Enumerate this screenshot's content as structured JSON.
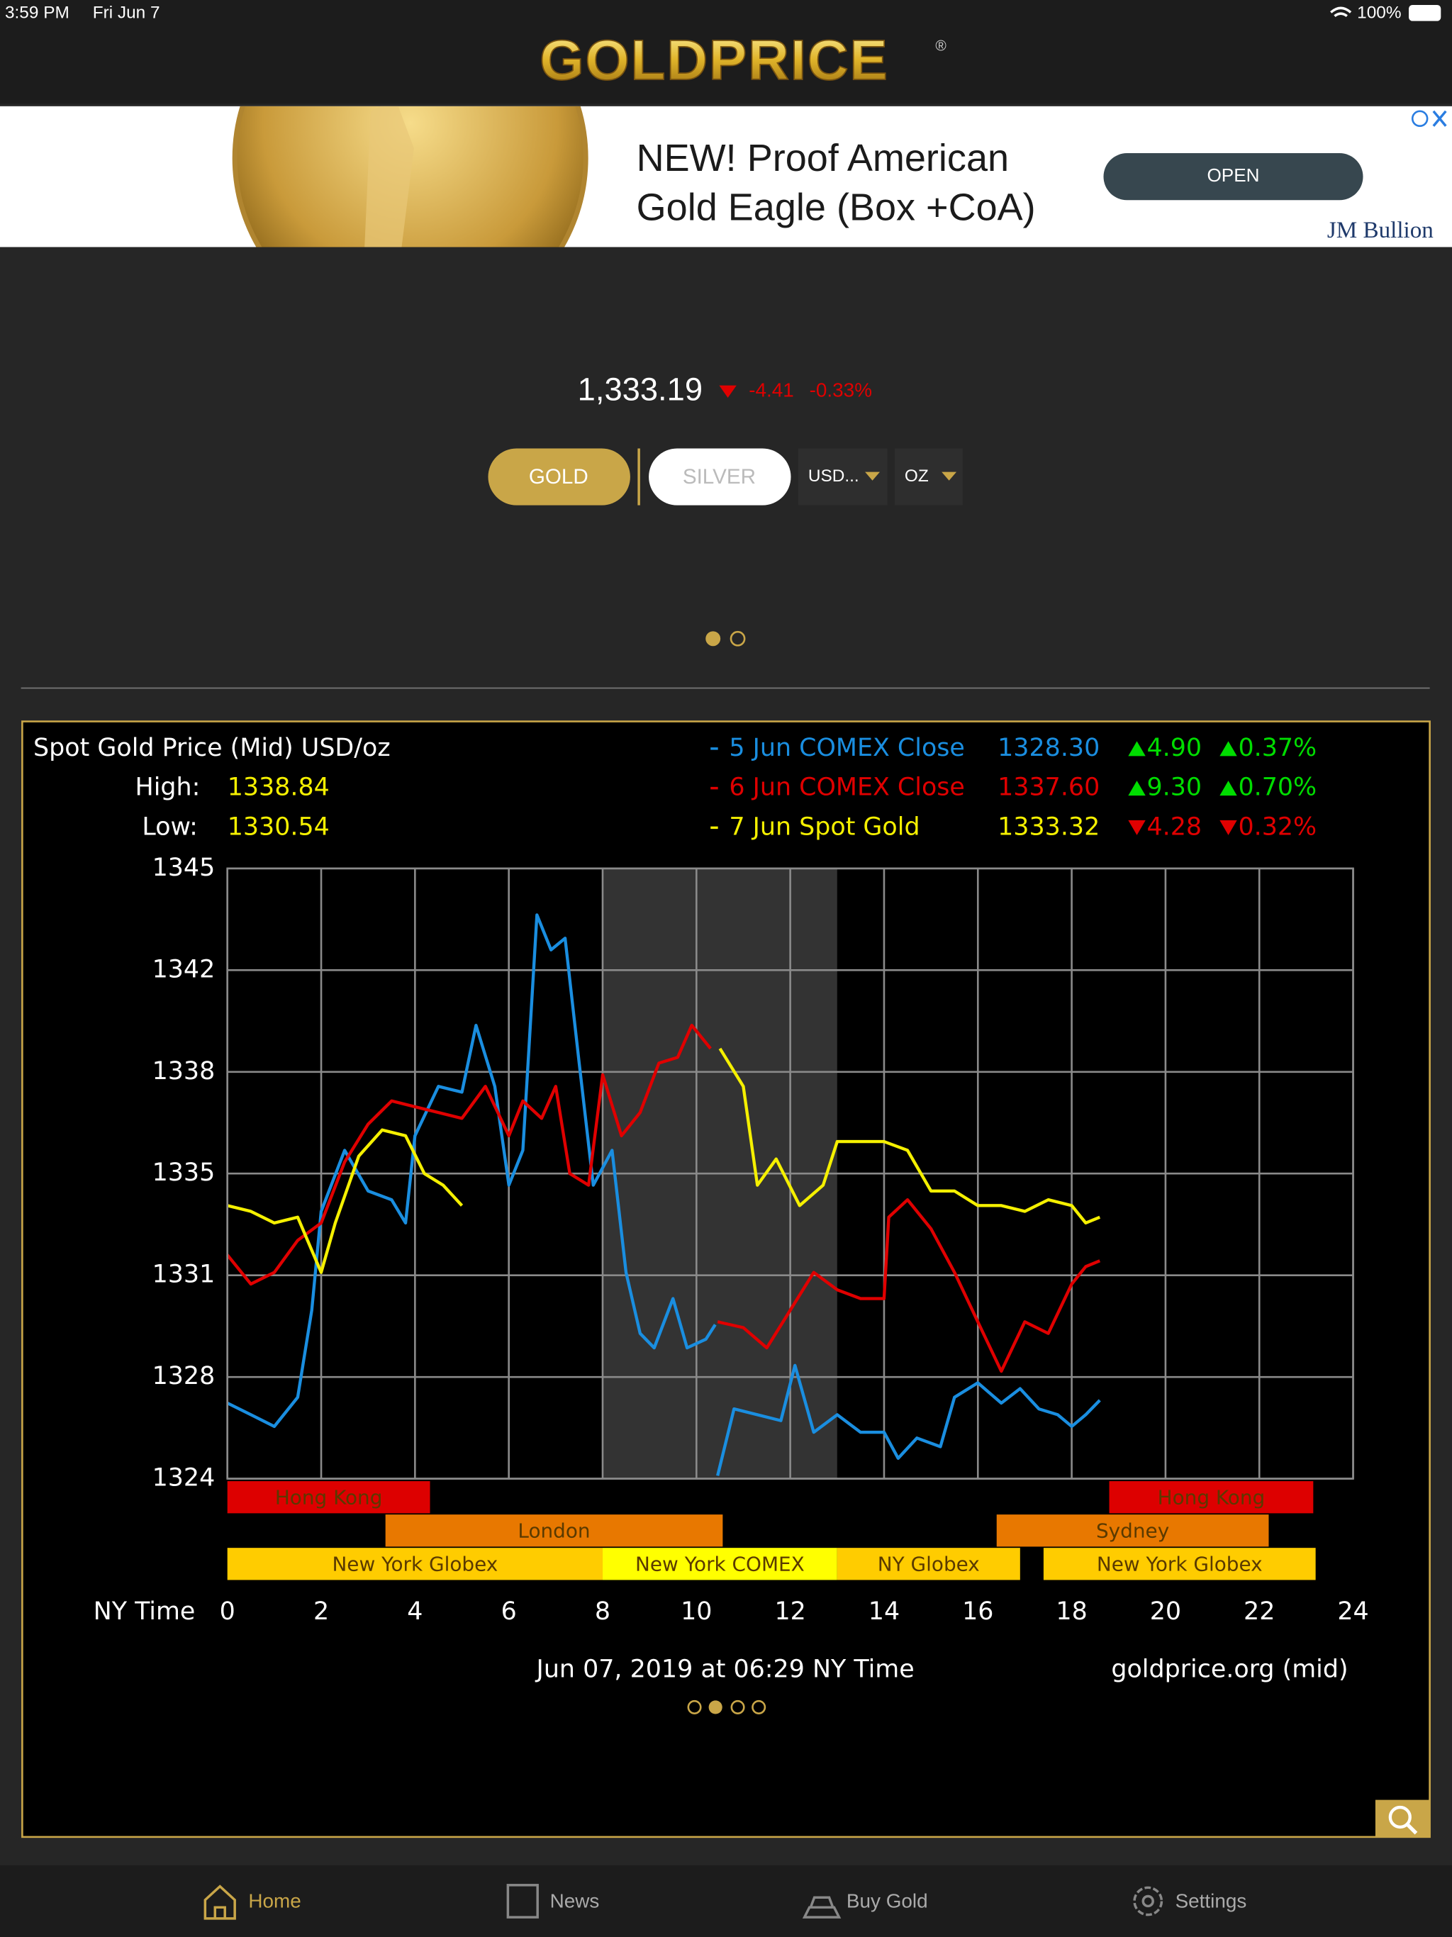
{
  "status_bar": {
    "time": "3:59 PM",
    "date": "Fri Jun 7",
    "battery": "100%"
  },
  "header": {
    "logo": "GOLDPRICE",
    "trademark": "®"
  },
  "ad": {
    "line1": "NEW! Proof American",
    "line2": "Gold Eagle (Box +CoA)",
    "button": "OPEN",
    "brand": "JM Bullion"
  },
  "price": {
    "value": "1,333.19",
    "change": "-4.41",
    "change_pct": "-0.33%"
  },
  "controls": {
    "metal_gold": "GOLD",
    "metal_silver": "SILVER",
    "currency": "USD...",
    "unit": "OZ"
  },
  "tabs": [
    "Home",
    "News",
    "Buy Gold",
    "Settings"
  ],
  "chart_data": {
    "type": "line",
    "title": "Spot Gold Price (Mid) USD/oz",
    "high_label": "High:",
    "high": 1338.84,
    "low_label": "Low:",
    "low": 1330.54,
    "x_label": "NY Time",
    "timestamp": "Jun 07, 2019 at 06:29 NY Time",
    "source": "goldprice.org (mid)",
    "xlim": [
      0,
      24
    ],
    "xticks": [
      0,
      2,
      4,
      6,
      8,
      10,
      12,
      14,
      16,
      18,
      20,
      22,
      24
    ],
    "ylim": [
      1324,
      1345
    ],
    "yticks": [
      1345,
      {
        "value": 1341.5,
        "label": "1342"
      },
      1338,
      {
        "value": 1334.5,
        "label": "1335"
      },
      1331,
      {
        "value": 1327.5,
        "label": "1328"
      },
      1324
    ],
    "grid": true,
    "shade": [
      8,
      13
    ],
    "series": [
      {
        "name": "5 Jun COMEX Close",
        "color": "#1a8ee0",
        "close": "1328.30",
        "direction": "up",
        "change": "4.90",
        "change_pct": "0.37%",
        "x": [
          0,
          0.5,
          1,
          1.5,
          1.8,
          2,
          2.5,
          3,
          3.5,
          3.8,
          4,
          4.5,
          5,
          5.3,
          5.7,
          6,
          6.3,
          6.6,
          6.9,
          7.2,
          7.5,
          7.8,
          8.2,
          8.5,
          8.8,
          9.1,
          9.5,
          9.8,
          10.2,
          10.4,
          10.42,
          10.45,
          10.8,
          11.3,
          11.8,
          12.1,
          12.5,
          13,
          13.5,
          14,
          14.3,
          14.7,
          15.2,
          15.5,
          16,
          16.5,
          16.9,
          17.3,
          17.7,
          18,
          18.3,
          18.6
        ],
        "values": [
          1326.6,
          1326.2,
          1325.8,
          1326.8,
          1329.8,
          1333.2,
          1335.3,
          1333.9,
          1333.6,
          1332.8,
          1335.8,
          1337.5,
          1337.3,
          1339.6,
          1337.5,
          1334.1,
          1335.3,
          1343.4,
          1342.2,
          1342.6,
          1338.3,
          1334.1,
          1335.3,
          1331.1,
          1329.0,
          1328.5,
          1330.2,
          1328.5,
          1328.8,
          1329.3,
          null,
          1324.1,
          1326.4,
          1326.2,
          1326.0,
          1327.9,
          1325.6,
          1326.2,
          1325.6,
          1325.6,
          1324.7,
          1325.4,
          1325.1,
          1326.8,
          1327.3,
          1326.6,
          1327.1,
          1326.4,
          1326.2,
          1325.8,
          1326.2,
          1326.7
        ]
      },
      {
        "name": "6 Jun COMEX Close",
        "color": "#e00000",
        "close": "1337.60",
        "direction": "up",
        "change": "9.30",
        "change_pct": "0.70%",
        "x": [
          0,
          0.5,
          1,
          1.5,
          2,
          2.5,
          3,
          3.5,
          4,
          4.5,
          5,
          5.5,
          6,
          6.3,
          6.7,
          7,
          7.3,
          7.7,
          8,
          8.4,
          8.8,
          9.2,
          9.6,
          9.9,
          10.3,
          10.4,
          10.45,
          11,
          11.5,
          12,
          12.5,
          13,
          13.5,
          14,
          14.1,
          14.5,
          15,
          15.5,
          16,
          16.5,
          17,
          17.5,
          18,
          18.3,
          18.6
        ],
        "values": [
          1331.7,
          1330.7,
          1331.1,
          1332.2,
          1332.8,
          1334.9,
          1336.2,
          1337.0,
          1336.8,
          1336.6,
          1336.4,
          1337.5,
          1335.8,
          1337.0,
          1336.4,
          1337.5,
          1334.5,
          1334.1,
          1337.9,
          1335.8,
          1336.6,
          1338.3,
          1338.5,
          1339.6,
          1338.8,
          null,
          1329.4,
          1329.2,
          1328.5,
          1329.8,
          1331.1,
          1330.5,
          1330.2,
          1330.2,
          1333.0,
          1333.6,
          1332.6,
          1331.1,
          1329.4,
          1327.7,
          1329.4,
          1329.0,
          1330.7,
          1331.3,
          1331.5
        ]
      },
      {
        "name": "7 Jun Spot Gold",
        "color": "#f5f000",
        "close": "1333.32",
        "direction": "down",
        "change": "4.28",
        "change_pct": "0.32%",
        "x": [
          0,
          0.5,
          1,
          1.5,
          2,
          2.3,
          2.8,
          3.3,
          3.8,
          4.2,
          4.6,
          5,
          7.5,
          10.5,
          11,
          11.3,
          11.7,
          12.2,
          12.7,
          13,
          13.5,
          14,
          14.5,
          15,
          15.5,
          16,
          16.5,
          17,
          17.5,
          18,
          18.3,
          18.6
        ],
        "values": [
          1333.4,
          1333.2,
          1332.8,
          1333.0,
          1331.1,
          1332.8,
          1335.1,
          1336.0,
          1335.8,
          1334.5,
          1334.1,
          1333.4,
          null,
          1338.8,
          1337.5,
          1334.1,
          1335.0,
          1333.4,
          1334.1,
          1335.6,
          1335.6,
          1335.6,
          1335.3,
          1333.9,
          1333.9,
          1333.4,
          1333.4,
          1333.2,
          1333.6,
          1333.4,
          1332.8,
          1333.0
        ]
      }
    ],
    "sessions": [
      {
        "label": "Hong Kong",
        "row": 0,
        "start": 0,
        "end": 4.32,
        "color": "#dd0000"
      },
      {
        "label": "Hong Kong",
        "row": 0,
        "start": 18.8,
        "end": 23.15,
        "color": "#dd0000"
      },
      {
        "label": "London",
        "row": 1,
        "start": 3.37,
        "end": 10.56,
        "color": "#e87800"
      },
      {
        "label": "Sydney",
        "row": 1,
        "start": 16.4,
        "end": 22.2,
        "color": "#e87800"
      },
      {
        "label": "New York Globex",
        "row": 2,
        "start": 0,
        "end": 8,
        "color": "#ffcc00"
      },
      {
        "label": "New York COMEX",
        "row": 2,
        "start": 8,
        "end": 13,
        "color": "#ffff00"
      },
      {
        "label": "NY Globex",
        "row": 2,
        "start": 13,
        "end": 16.9,
        "color": "#ffcc00"
      },
      {
        "label": "New York Globex",
        "row": 2,
        "start": 17.4,
        "end": 23.2,
        "color": "#ffcc00"
      }
    ]
  }
}
